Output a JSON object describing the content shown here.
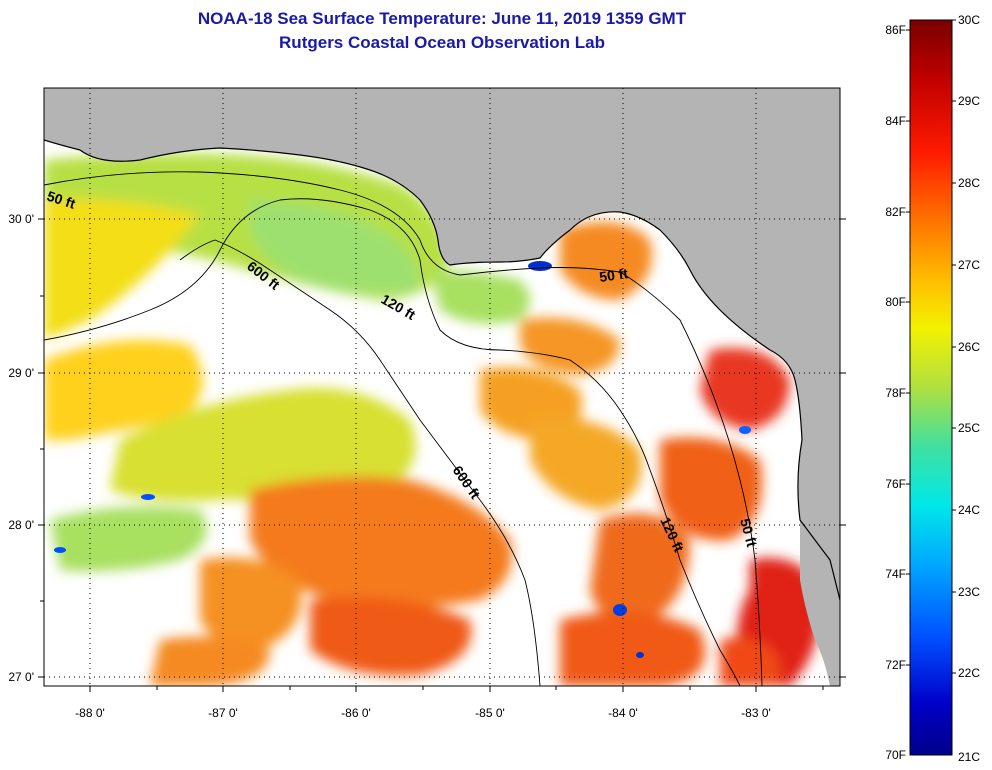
{
  "title": {
    "line1": "NOAA-18 Sea Surface Temperature:  June 11, 2019 1359 GMT",
    "line2": "Rutgers Coastal Ocean Observation Lab"
  },
  "map": {
    "lon_ticks": [
      "-88 0'",
      "-87 0'",
      "-86 0'",
      "-85 0'",
      "-84 0'",
      "-83 0'"
    ],
    "lat_ticks": [
      "30 0'",
      "29 0'",
      "28 0'",
      "27 0'"
    ],
    "contour_labels": [
      "50 ft",
      "600 ft",
      "120 ft",
      "50 ft",
      "600 ft",
      "120 ft",
      "50 ft"
    ],
    "colors": {
      "land": "#b4b4b4",
      "cloud": "#ffffff",
      "frame": "#000000"
    }
  },
  "colorbar": {
    "f_labels": [
      "86F",
      "84F",
      "82F",
      "80F",
      "78F",
      "76F",
      "74F",
      "72F",
      "70F"
    ],
    "c_labels": [
      "30C",
      "29C",
      "28C",
      "27C",
      "26C",
      "25C",
      "24C",
      "23C",
      "22C",
      "21C"
    ],
    "stops": [
      "#7a0000",
      "#c00000",
      "#ff1a00",
      "#ff7a00",
      "#ffc200",
      "#f2f200",
      "#b0e040",
      "#40e0a0",
      "#00e8e8",
      "#00a8ff",
      "#0050ff",
      "#0000c8",
      "#00008a"
    ]
  }
}
